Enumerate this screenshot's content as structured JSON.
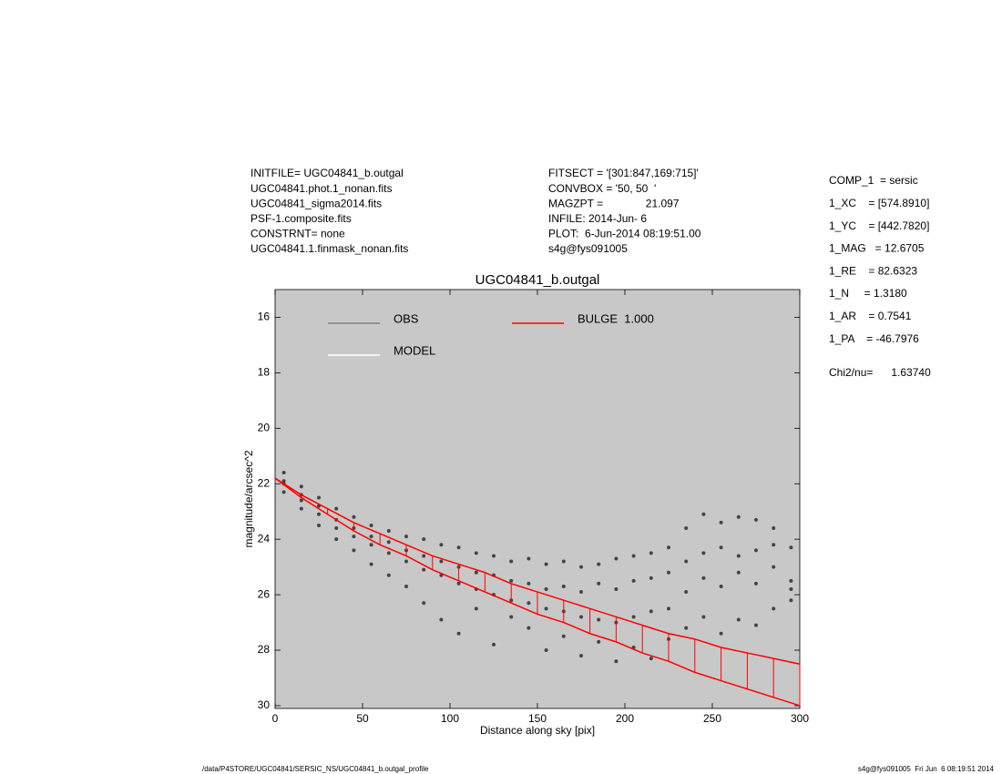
{
  "header": {
    "left": [
      "INITFILE= UGC04841_b.outgal",
      "UGC04841.phot.1_nonan.fits",
      "UGC04841_sigma2014.fits",
      "PSF-1.composite.fits",
      "CONSTRNT= none",
      "UGC04841.1.finmask_nonan.fits"
    ],
    "middle": [
      "FITSECT = '[301:847,169:715]'",
      "CONVBOX = '50, 50  '",
      "MAGZPT =              21.097",
      "INFILE: 2014-Jun- 6",
      "PLOT:  6-Jun-2014 08:19:51.00",
      "s4g@fys091005"
    ],
    "params": [
      "COMP_1  = sersic",
      "1_XC    = [574.8910]",
      "1_YC    = [442.7820]",
      "1_MAG   = 12.6705",
      "1_RE    = 82.6323",
      "1_N     = 1.3180",
      "1_AR    = 0.7541",
      "1_PA    = -46.7976"
    ],
    "chi2": "Chi2/nu=      1.63740"
  },
  "footer": {
    "left": "/data/P4STORE/UGC04841/SERSIC_NS/UGC04841_b.outgal_profile",
    "right": "s4g@fys091005  Fri Jun  6 08:19:51 2014"
  },
  "chart_data": {
    "type": "scatter",
    "title": "UGC04841_b.outgal",
    "x_label": "Distance along sky [pix]",
    "y_label": "magnitude/arcsec^2",
    "xlim": [
      0,
      300
    ],
    "xticks": [
      0,
      50,
      100,
      150,
      200,
      250,
      300
    ],
    "ylim": [
      15,
      30.1
    ],
    "y_inverted": true,
    "yticks": [
      16,
      18,
      20,
      22,
      24,
      26,
      28,
      30
    ],
    "series": [
      {
        "name": "OBS",
        "color": "#808080",
        "marker_color": "#444444",
        "x": [
          5,
          5,
          5,
          5,
          15,
          15,
          15,
          15,
          25,
          25,
          25,
          25,
          35,
          35,
          35,
          35,
          45,
          45,
          45,
          45,
          55,
          55,
          55,
          55,
          65,
          65,
          65,
          65,
          75,
          75,
          75,
          75,
          85,
          85,
          85,
          85,
          95,
          95,
          95,
          95,
          105,
          105,
          105,
          105,
          115,
          115,
          115,
          115,
          125,
          125,
          125,
          125,
          135,
          135,
          135,
          135,
          145,
          145,
          145,
          145,
          155,
          155,
          155,
          155,
          165,
          165,
          165,
          165,
          175,
          175,
          175,
          175,
          185,
          185,
          185,
          185,
          195,
          195,
          195,
          195,
          205,
          205,
          205,
          205,
          215,
          215,
          215,
          215,
          225,
          225,
          225,
          225,
          235,
          235,
          235,
          235,
          245,
          245,
          245,
          245,
          255,
          255,
          255,
          255,
          265,
          265,
          265,
          265,
          275,
          275,
          275,
          275,
          285,
          285,
          285,
          285,
          295,
          295,
          295,
          295
        ],
        "values": [
          21.6,
          22.0,
          22.3,
          21.9,
          22.1,
          22.6,
          22.9,
          22.4,
          22.5,
          23.1,
          23.5,
          22.8,
          22.9,
          23.6,
          24.0,
          23.3,
          23.2,
          23.9,
          24.4,
          23.6,
          23.5,
          24.2,
          24.9,
          23.9,
          23.7,
          24.5,
          25.3,
          24.1,
          23.9,
          24.8,
          25.7,
          24.4,
          24.0,
          25.1,
          26.3,
          24.6,
          24.2,
          25.3,
          26.9,
          24.8,
          24.3,
          25.6,
          27.4,
          25.0,
          24.5,
          25.8,
          26.5,
          25.2,
          24.6,
          26.0,
          27.8,
          25.3,
          24.8,
          26.2,
          26.8,
          25.5,
          24.7,
          26.3,
          27.2,
          25.6,
          24.9,
          26.5,
          28.0,
          25.8,
          24.8,
          26.6,
          27.5,
          25.7,
          25.0,
          26.8,
          28.2,
          25.9,
          24.9,
          26.9,
          27.7,
          25.6,
          24.7,
          27.0,
          28.4,
          25.8,
          24.6,
          26.8,
          27.9,
          25.5,
          24.5,
          26.6,
          28.3,
          25.4,
          24.3,
          26.5,
          27.6,
          25.2,
          23.6,
          25.9,
          27.2,
          24.8,
          23.1,
          25.4,
          26.8,
          24.5,
          23.4,
          25.7,
          27.4,
          24.3,
          23.2,
          25.2,
          26.9,
          24.6,
          23.3,
          25.6,
          27.1,
          24.4,
          23.6,
          25.0,
          26.5,
          24.2,
          24.3,
          25.5,
          26.2,
          25.8
        ]
      },
      {
        "name": "MODEL",
        "color": "#ffffff",
        "x": [],
        "values": []
      },
      {
        "name": "BULGE  1.000",
        "color": "#ff0000",
        "x": [
          0,
          15,
          30,
          45,
          60,
          75,
          90,
          105,
          120,
          135,
          150,
          165,
          180,
          195,
          210,
          225,
          240,
          255,
          270,
          285,
          300
        ],
        "values": [
          21.8,
          22.4,
          22.9,
          23.4,
          23.8,
          24.2,
          24.6,
          24.9,
          25.2,
          25.6,
          25.9,
          26.2,
          26.5,
          26.8,
          27.1,
          27.4,
          27.6,
          27.9,
          28.1,
          28.3,
          28.5
        ],
        "lower": [
          21.8,
          22.5,
          23.1,
          23.7,
          24.2,
          24.6,
          25.1,
          25.5,
          25.9,
          26.3,
          26.7,
          27.0,
          27.4,
          27.7,
          28.1,
          28.4,
          28.8,
          29.1,
          29.4,
          29.7,
          30.0
        ]
      }
    ]
  }
}
